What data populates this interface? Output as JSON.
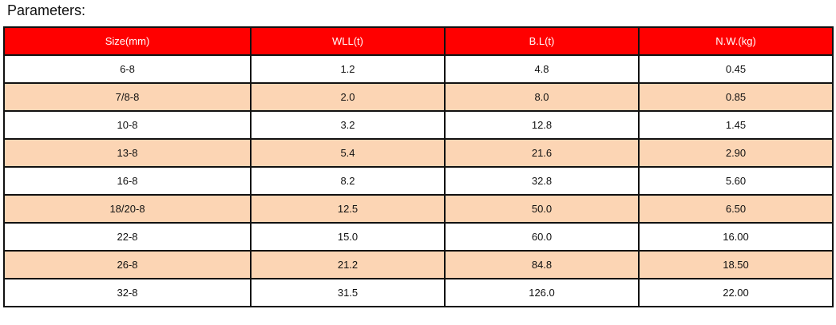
{
  "title": "Parameters:",
  "colors": {
    "header_bg": "#ff0000",
    "alt_row_bg": "#fcd5b4"
  },
  "table": {
    "headers": [
      "Size(mm)",
      "WLL(t)",
      "B.L(t)",
      "N.W.(kg)"
    ],
    "rows": [
      [
        "6-8",
        "1.2",
        "4.8",
        "0.45"
      ],
      [
        "7/8-8",
        "2.0",
        "8.0",
        "0.85"
      ],
      [
        "10-8",
        "3.2",
        "12.8",
        "1.45"
      ],
      [
        "13-8",
        "5.4",
        "21.6",
        "2.90"
      ],
      [
        "16-8",
        "8.2",
        "32.8",
        "5.60"
      ],
      [
        "18/20-8",
        "12.5",
        "50.0",
        "6.50"
      ],
      [
        "22-8",
        "15.0",
        "60.0",
        "16.00"
      ],
      [
        "26-8",
        "21.2",
        "84.8",
        "18.50"
      ],
      [
        "32-8",
        "31.5",
        "126.0",
        "22.00"
      ]
    ]
  }
}
